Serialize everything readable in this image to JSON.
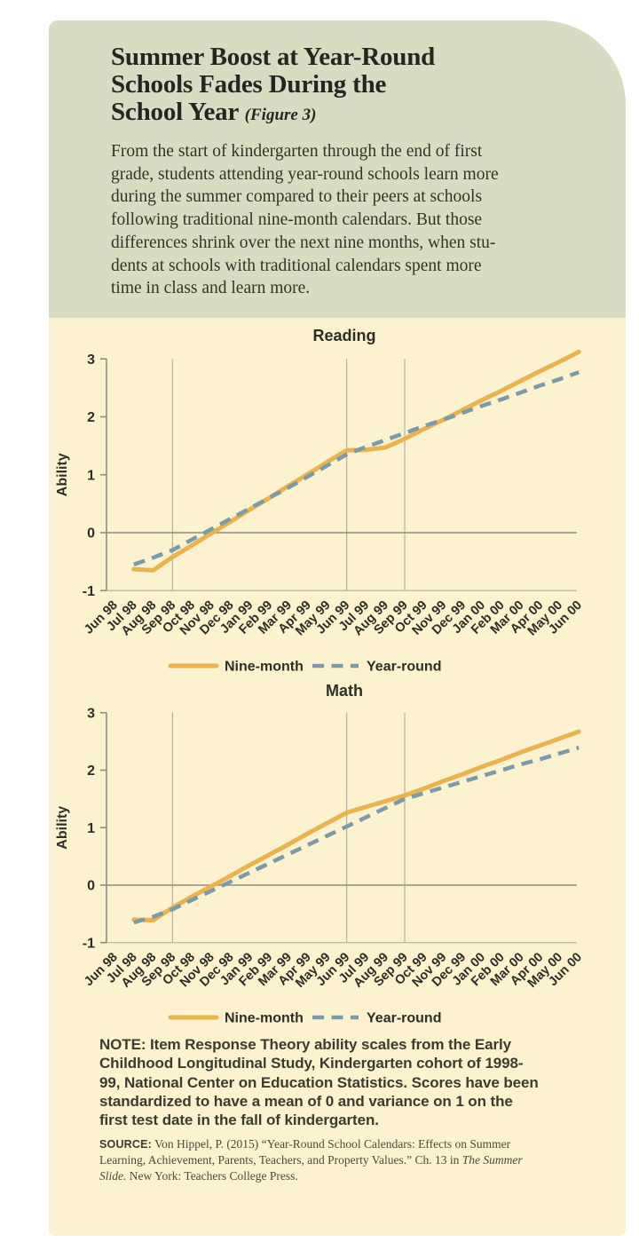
{
  "colors": {
    "header_bg": "#d9dcc2",
    "body_bg": "#fcf2d0",
    "nine_month_line": "#ebb34c",
    "year_round_line": "#7c9aa9",
    "axis_dark": "#8f8d83",
    "grid_light": "#b9b5a4",
    "title_text": "#262621",
    "chart_text": "#2e2e28"
  },
  "header": {
    "title_line1": "Summer Boost at Year-Round",
    "title_line2": "Schools Fades During the",
    "title_line3": "School Year",
    "figure_label": "(Figure 3)",
    "intro_lines": [
      "From the start of kindergarten through the end of first",
      "grade, students attending year-round schools learn more",
      "during the summer compared to their peers at schools",
      "following traditional nine-month calendars. But those",
      "differences shrink over the next nine months, when stu-",
      "dents at schools with traditional calendars spent more",
      "time in class and learn more."
    ]
  },
  "note": {
    "lines": [
      "NOTE: Item Response Theory ability scales from the Early",
      "Childhood Longitudinal Study, Kindergarten cohort of 1998-",
      "99, National Center on Education Statistics. Scores have been",
      "standardized to have a mean of 0 and variance on 1 on the",
      "first test date in the fall of kindergarten."
    ]
  },
  "source": {
    "lines": [
      [
        {
          "style": "label",
          "text": "SOURCE:"
        },
        {
          "style": "serif",
          "text": " Von Hippel, P. (2015) “Year-Round School Calendars: Effects on Summer"
        }
      ],
      [
        {
          "style": "serif",
          "text": "Learning, Achievement, Parents, Teachers, and Property Values.” Ch. 13 in "
        },
        {
          "style": "italic",
          "text": "The Summer"
        }
      ],
      [
        {
          "style": "italic",
          "text": "Slide."
        },
        {
          "style": "serif",
          "text": " New York: Teachers College Press."
        }
      ]
    ]
  },
  "chart_data": [
    {
      "type": "line",
      "title": "Reading",
      "ylabel": "Ability",
      "ylim": [
        -1,
        3
      ],
      "yticks": [
        3,
        2,
        1,
        0,
        -1
      ],
      "grid": "vertical lines at school-year boundaries",
      "grid_months": [
        "Sep 98",
        "Jun 99",
        "Sep 99"
      ],
      "legend_position": "bottom-center",
      "categories": [
        "Jun 98",
        "Jul 98",
        "Aug 98",
        "Sep 98",
        "Oct 98",
        "Nov 98",
        "Dec 98",
        "Jan 99",
        "Feb 99",
        "Mar 99",
        "Apr 99",
        "May 99",
        "Jun 99",
        "Jul 99",
        "Aug 99",
        "Sep 99",
        "Oct 99",
        "Nov 99",
        "Dec 99",
        "Jan 00",
        "Feb 00",
        "Mar 00",
        "Apr 00",
        "May 00",
        "Jun 00"
      ],
      "series": [
        {
          "name": "Nine-month",
          "style": "solid",
          "color": "#ebb34c",
          "start_index": 1,
          "values": [
            -0.63,
            -0.65,
            -0.42,
            -0.22,
            -0.01,
            0.19,
            0.4,
            0.6,
            0.81,
            1.01,
            1.22,
            1.42,
            1.43,
            1.47,
            1.62,
            1.79,
            1.95,
            2.12,
            2.29,
            2.45,
            2.62,
            2.79,
            2.95,
            3.12
          ]
        },
        {
          "name": "Year-round",
          "style": "dashed",
          "color": "#7c9aa9",
          "start_index": 1,
          "values": [
            -0.55,
            -0.43,
            -0.3,
            -0.12,
            0.06,
            0.24,
            0.42,
            0.6,
            0.78,
            0.97,
            1.16,
            1.35,
            1.48,
            1.6,
            1.72,
            1.84,
            1.95,
            2.07,
            2.19,
            2.3,
            2.42,
            2.54,
            2.65,
            2.77
          ]
        }
      ]
    },
    {
      "type": "line",
      "title": "Math",
      "ylabel": "Ability",
      "ylim": [
        -1,
        3
      ],
      "yticks": [
        3,
        2,
        1,
        0,
        -1
      ],
      "grid": "vertical lines at school-year boundaries",
      "grid_months": [
        "Sep 98",
        "Jun 99",
        "Sep 99"
      ],
      "legend_position": "bottom-center",
      "categories": [
        "Jun 98",
        "Jul 98",
        "Aug 98",
        "Sep 98",
        "Oct 98",
        "Nov 98",
        "Dec 98",
        "Jan 99",
        "Feb 99",
        "Mar 99",
        "Apr 99",
        "May 99",
        "Jun 99",
        "Jul 99",
        "Aug 99",
        "Sep 99",
        "Oct 99",
        "Nov 99",
        "Dec 99",
        "Jan 00",
        "Feb 00",
        "Mar 00",
        "Apr 00",
        "May 00",
        "Jun 00"
      ],
      "series": [
        {
          "name": "Nine-month",
          "style": "solid",
          "color": "#ebb34c",
          "start_index": 1,
          "values": [
            -0.6,
            -0.61,
            -0.39,
            -0.2,
            -0.02,
            0.16,
            0.35,
            0.53,
            0.71,
            0.9,
            1.08,
            1.26,
            1.36,
            1.46,
            1.56,
            1.68,
            1.81,
            1.93,
            2.06,
            2.18,
            2.31,
            2.43,
            2.55,
            2.67
          ]
        },
        {
          "name": "Year-round",
          "style": "dashed",
          "color": "#7c9aa9",
          "start_index": 1,
          "values": [
            -0.65,
            -0.55,
            -0.42,
            -0.26,
            -0.1,
            0.06,
            0.22,
            0.38,
            0.54,
            0.7,
            0.86,
            1.02,
            1.18,
            1.34,
            1.5,
            1.6,
            1.7,
            1.8,
            1.9,
            2.0,
            2.1,
            2.19,
            2.29,
            2.39
          ]
        }
      ]
    }
  ]
}
